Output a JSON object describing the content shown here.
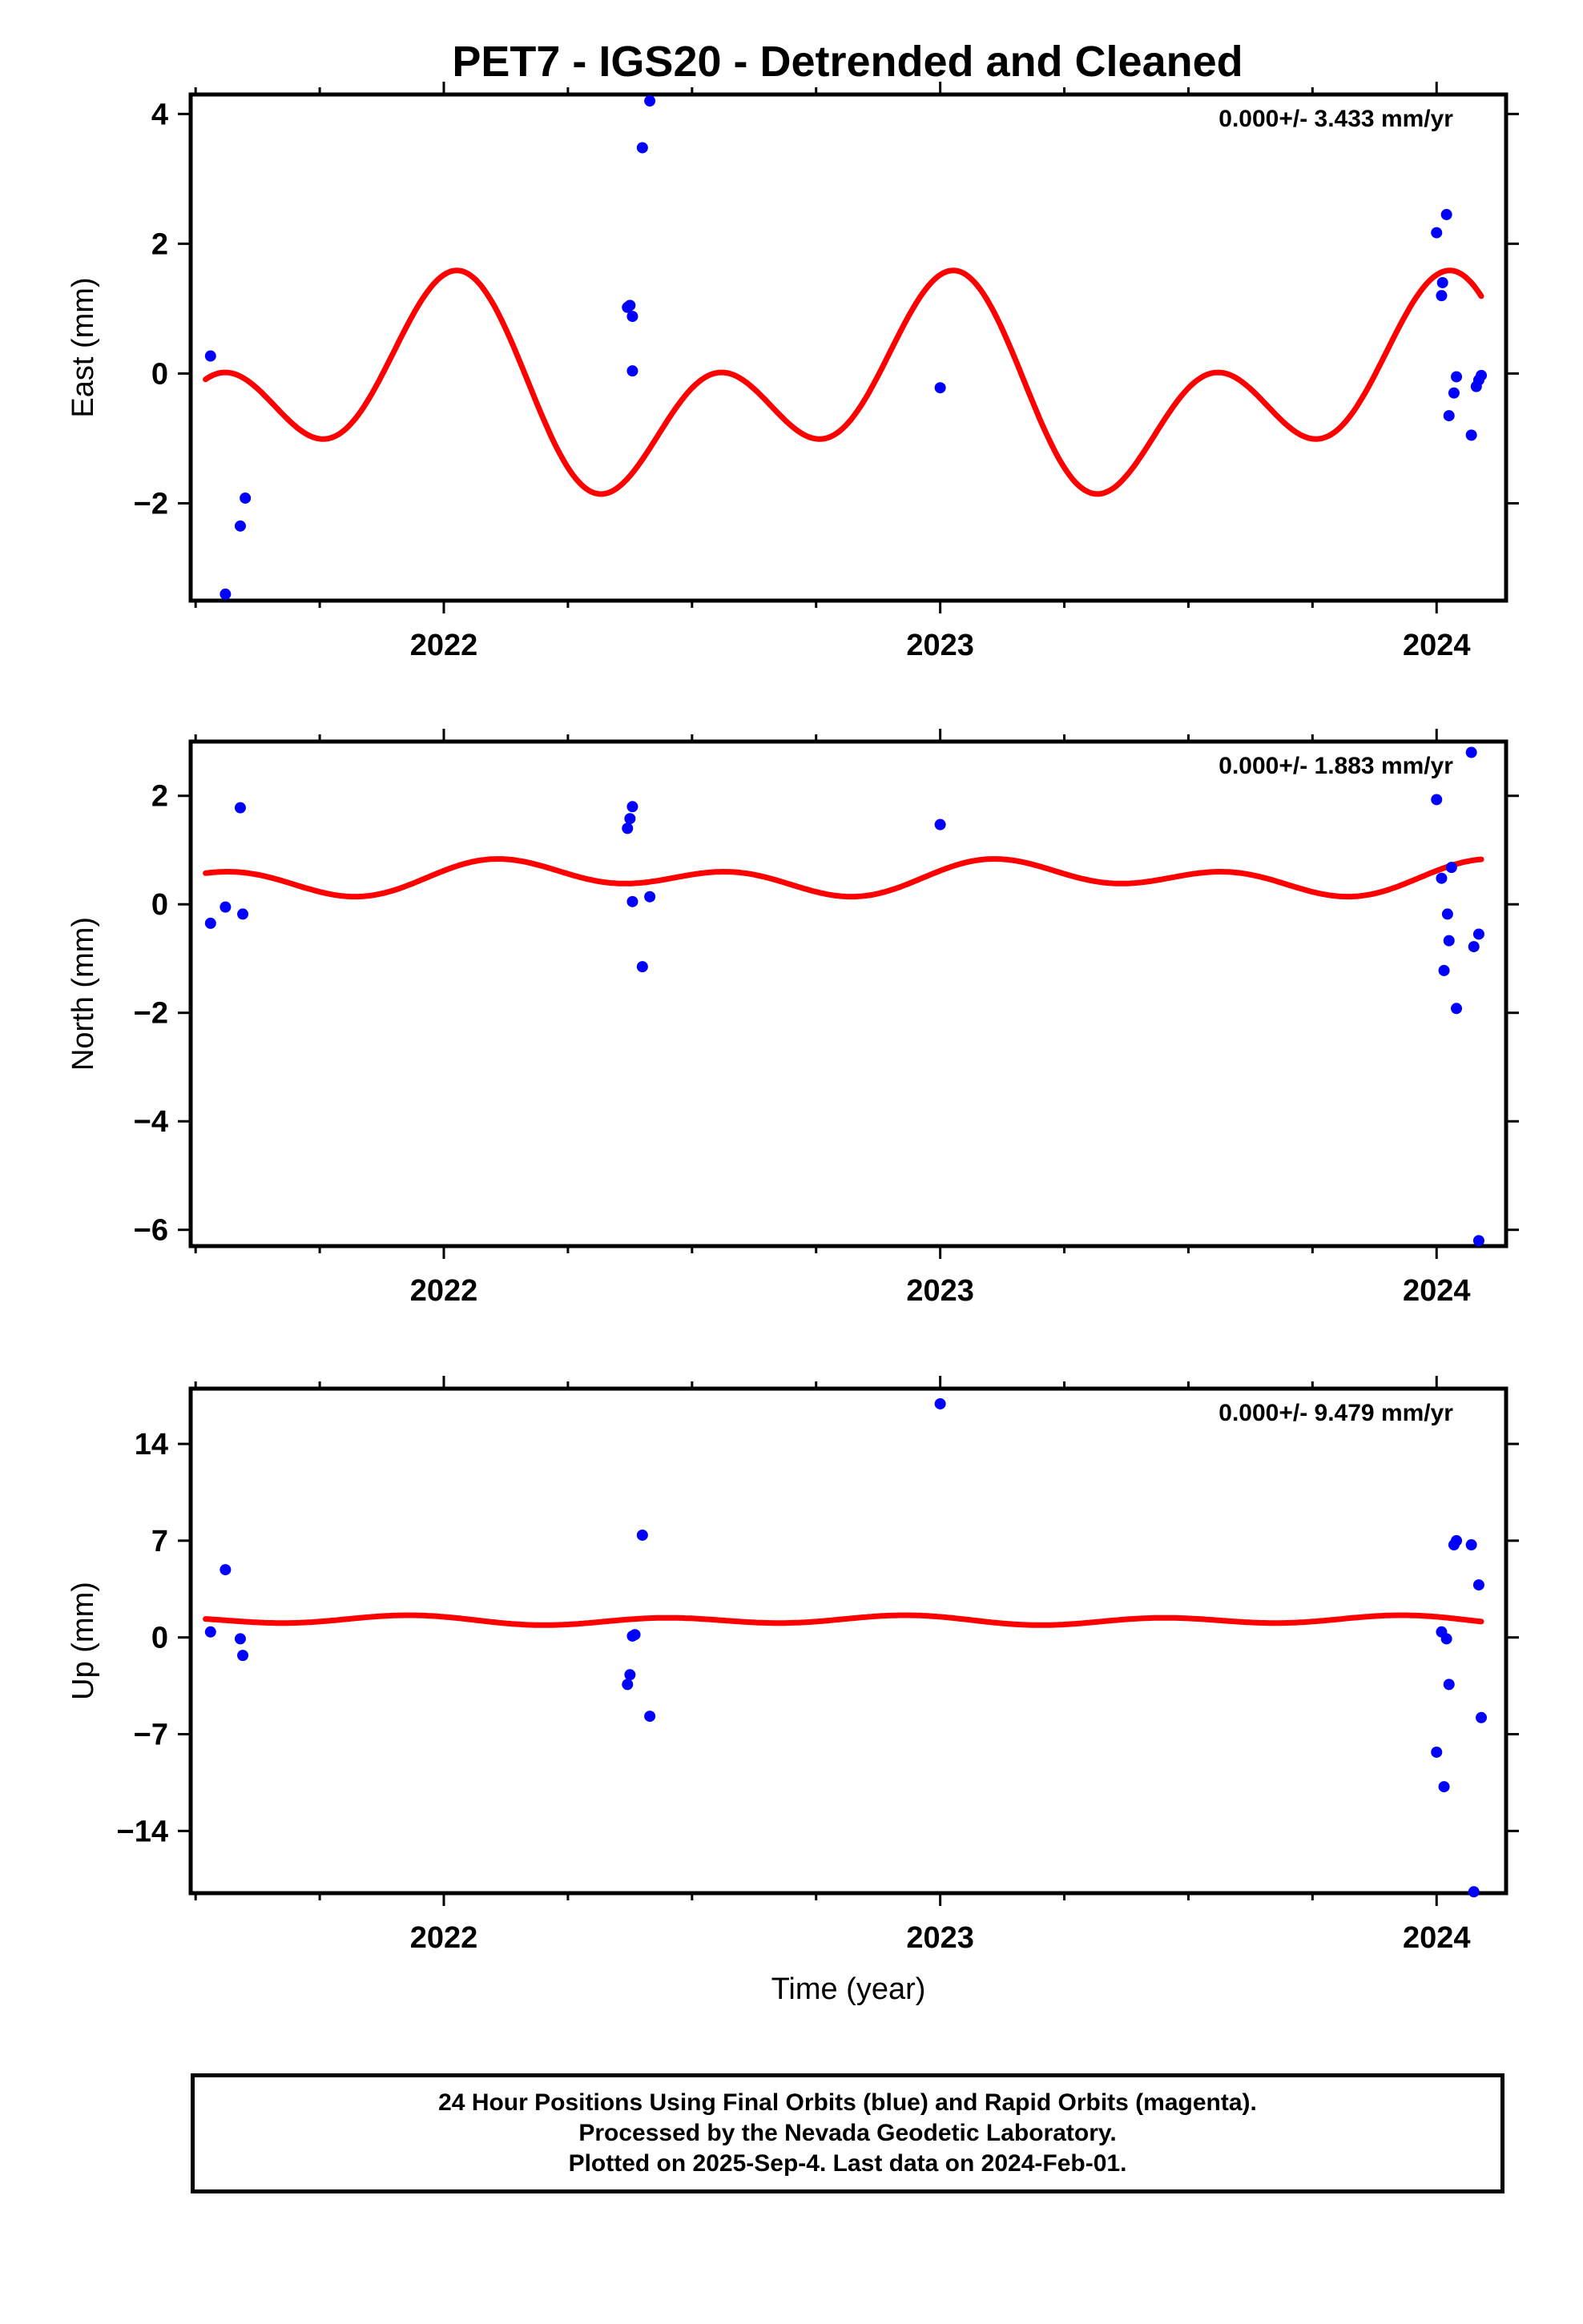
{
  "title": "PET7 - IGS20 - Detrended and Cleaned",
  "footer": {
    "line1": "24 Hour Positions Using Final Orbits (blue) and Rapid Orbits (magenta).",
    "line2": "Processed by the Nevada Geodetic Laboratory.",
    "line3": "Plotted on 2025-Sep-4. Last data on 2024-Feb-01."
  },
  "colors": {
    "points": "#0000ff",
    "model": "#ff0000",
    "axes": "#000000"
  },
  "chart_data": [
    {
      "type": "scatter",
      "ylabel": "East (mm)",
      "xlabel": "",
      "rate_label": "0.000+/- 3.433 mm/yr",
      "xlim": [
        2021.49,
        2024.14
      ],
      "ylim": [
        -3.5,
        4.3
      ],
      "xticks": [
        2022,
        2023,
        2024
      ],
      "yticks": [
        -2,
        0,
        2,
        4
      ],
      "ytick_labels": [
        "−2",
        "0",
        "2",
        "4"
      ],
      "points": [
        [
          2021.53,
          0.27
        ],
        [
          2021.56,
          -3.4
        ],
        [
          2021.59,
          -2.35
        ],
        [
          2021.6,
          -1.92
        ],
        [
          2022.37,
          1.02
        ],
        [
          2022.375,
          1.05
        ],
        [
          2022.38,
          0.04
        ],
        [
          2022.38,
          0.88
        ],
        [
          2022.4,
          3.48
        ],
        [
          2022.415,
          4.2
        ],
        [
          2023.0,
          -0.22
        ],
        [
          2024.0,
          2.17
        ],
        [
          2024.01,
          1.2
        ],
        [
          2024.012,
          1.4
        ],
        [
          2024.02,
          2.45
        ],
        [
          2024.025,
          -0.65
        ],
        [
          2024.035,
          -0.3
        ],
        [
          2024.04,
          -0.05
        ],
        [
          2024.07,
          -0.95
        ],
        [
          2024.08,
          -0.2
        ],
        [
          2024.085,
          -0.1
        ],
        [
          2024.09,
          -0.03
        ]
      ],
      "model": {
        "mean": -0.29,
        "annual_amp": 0.9,
        "annual_phase": 1.82,
        "semi_amp": 1.07,
        "semi_phase": 1.07,
        "x_start": 2021.52,
        "x_end": 2024.09
      }
    },
    {
      "type": "scatter",
      "ylabel": "North (mm)",
      "xlabel": "",
      "rate_label": "0.000+/- 1.883 mm/yr",
      "xlim": [
        2021.49,
        2024.14
      ],
      "ylim": [
        -6.3,
        3.0
      ],
      "xticks": [
        2022,
        2023,
        2024
      ],
      "yticks": [
        -6,
        -4,
        -2,
        0,
        2
      ],
      "ytick_labels": [
        "−6",
        "−4",
        "−2",
        "0",
        "2"
      ],
      "points": [
        [
          2021.53,
          -0.35
        ],
        [
          2021.56,
          -0.05
        ],
        [
          2021.59,
          1.78
        ],
        [
          2021.595,
          -0.18
        ],
        [
          2022.37,
          1.4
        ],
        [
          2022.375,
          1.58
        ],
        [
          2022.38,
          1.8
        ],
        [
          2022.38,
          0.05
        ],
        [
          2022.4,
          -1.15
        ],
        [
          2022.415,
          0.14
        ],
        [
          2023.0,
          1.47
        ],
        [
          2024.0,
          1.93
        ],
        [
          2024.01,
          0.48
        ],
        [
          2024.015,
          -1.22
        ],
        [
          2024.022,
          -0.18
        ],
        [
          2024.025,
          -0.67
        ],
        [
          2024.03,
          0.68
        ],
        [
          2024.04,
          -1.92
        ],
        [
          2024.07,
          2.8
        ],
        [
          2024.075,
          -0.78
        ],
        [
          2024.085,
          -0.55
        ],
        [
          2024.085,
          -6.2
        ]
      ],
      "model": {
        "mean": 0.49,
        "annual_amp": 0.17,
        "annual_phase": 0.21,
        "semi_amp": 0.22,
        "semi_phase": 0.44,
        "x_start": 2021.52,
        "x_end": 2024.09
      }
    },
    {
      "type": "scatter",
      "ylabel": "Up (mm)",
      "xlabel": "Time (year)",
      "rate_label": "0.000+/- 9.479 mm/yr",
      "xlim": [
        2021.49,
        2024.14
      ],
      "ylim": [
        -18.5,
        18.0
      ],
      "xticks": [
        2022,
        2023,
        2024
      ],
      "yticks": [
        -14,
        -7,
        0,
        7,
        14
      ],
      "ytick_labels": [
        "−14",
        "−7",
        "0",
        "7",
        "14"
      ],
      "points": [
        [
          2021.53,
          0.4
        ],
        [
          2021.56,
          4.9
        ],
        [
          2021.59,
          -0.1
        ],
        [
          2021.595,
          -1.3
        ],
        [
          2022.37,
          -3.4
        ],
        [
          2022.375,
          -2.7
        ],
        [
          2022.38,
          0.1
        ],
        [
          2022.385,
          0.2
        ],
        [
          2022.4,
          7.4
        ],
        [
          2022.415,
          -5.7
        ],
        [
          2023.0,
          16.9
        ],
        [
          2024.0,
          -8.3
        ],
        [
          2024.01,
          0.4
        ],
        [
          2024.015,
          -10.8
        ],
        [
          2024.02,
          -0.1
        ],
        [
          2024.025,
          -3.4
        ],
        [
          2024.035,
          6.7
        ],
        [
          2024.04,
          7.0
        ],
        [
          2024.07,
          6.7
        ],
        [
          2024.075,
          -18.4
        ],
        [
          2024.085,
          3.8
        ],
        [
          2024.09,
          -5.8
        ]
      ],
      "model": {
        "mean": 1.24,
        "annual_amp": 0.12,
        "annual_phase": 2.64,
        "semi_amp": 0.27,
        "semi_phase": 2.33,
        "x_start": 2021.52,
        "x_end": 2024.09
      }
    }
  ]
}
